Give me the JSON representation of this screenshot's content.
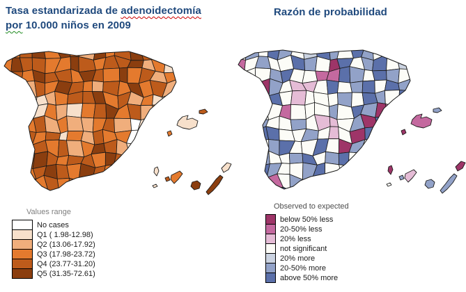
{
  "titles": {
    "left_line1_prefix": "Tasa estandarizada de ",
    "left_line1_misspelled": "adenoidectomía",
    "left_line2_misspelled": "por",
    "left_line2_rest": " 10.000 niños en 2009",
    "right": "Razón de probabilidad",
    "title_color": "#1F497D"
  },
  "legend_left": {
    "header": "Values range",
    "items": [
      {
        "label": "No cases",
        "color": "#FFFFFF"
      },
      {
        "label": "Q1 ( 1.98-12.98)",
        "color": "#F7E0CB"
      },
      {
        "label": "Q2 (13.06-17.92)",
        "color": "#F0AE7C"
      },
      {
        "label": "Q3 (17.98-23.72)",
        "color": "#E47A2E"
      },
      {
        "label": "Q4 (23.77-31.20)",
        "color": "#BD5B1B"
      },
      {
        "label": "Q5 (31.35-72.61)",
        "color": "#8B3E0F"
      }
    ]
  },
  "legend_right": {
    "header": "Observed to expected",
    "items": [
      {
        "label": "below 50% less",
        "color": "#9E3568"
      },
      {
        "label": "20-50% less",
        "color": "#C4699F"
      },
      {
        "label": "20% less",
        "color": "#E5BCD6"
      },
      {
        "label": "not significant",
        "color": "#FCFCF7"
      },
      {
        "label": "20% more",
        "color": "#CBD3E1"
      },
      {
        "label": "20-50% more",
        "color": "#92A2C8"
      },
      {
        "label": "above 50% more",
        "color": "#5B70AA"
      }
    ]
  },
  "map_left": {
    "palette": [
      "#FFFFFF",
      "#F7E0CB",
      "#F0AE7C",
      "#E47A2E",
      "#BD5B1B",
      "#8B3E0F"
    ],
    "grid": [
      "434535425345431",
      "354433543445231",
      "243544354353423",
      "132435432435342",
      "341123445342311",
      "432132134534232",
      "543423223420123",
      "454341324330242",
      "345434235421321",
      "234543443542312",
      "343454354324323",
      "434343445433212",
      "343434534322321"
    ],
    "islands": {
      "mallorca": 1,
      "menorca": 4,
      "ibiza": 3,
      "lapalma": 1,
      "hierro": 1,
      "gomera": 4,
      "tenerife": 3,
      "grancanaria": 5,
      "fuerteventura": 5,
      "lanzarote": 1
    }
  },
  "map_right": {
    "palette": [
      "#9E3568",
      "#C4699F",
      "#E5BCD6",
      "#FCFCF7",
      "#CBD3E1",
      "#92A2C8",
      "#5B70AA"
    ],
    "grid": [
      "353653465365313",
      "135336530635634",
      "333563311653653",
      "300532236356365",
      "530632333536536",
      "653313335365013",
      "365335322350635",
      "536633532306503",
      "653563363053653",
      "365335635630534",
      "536533563315653",
      "653135356534323",
      "345363433533534"
    ],
    "islands": {
      "mallorca": 1,
      "menorca": 5,
      "ibiza": 0,
      "lapalma": 0,
      "hierro": 3,
      "gomera": 5,
      "tenerife": 2,
      "grancanaria": 5,
      "fuerteventura": 5,
      "lanzarote": 0
    }
  }
}
